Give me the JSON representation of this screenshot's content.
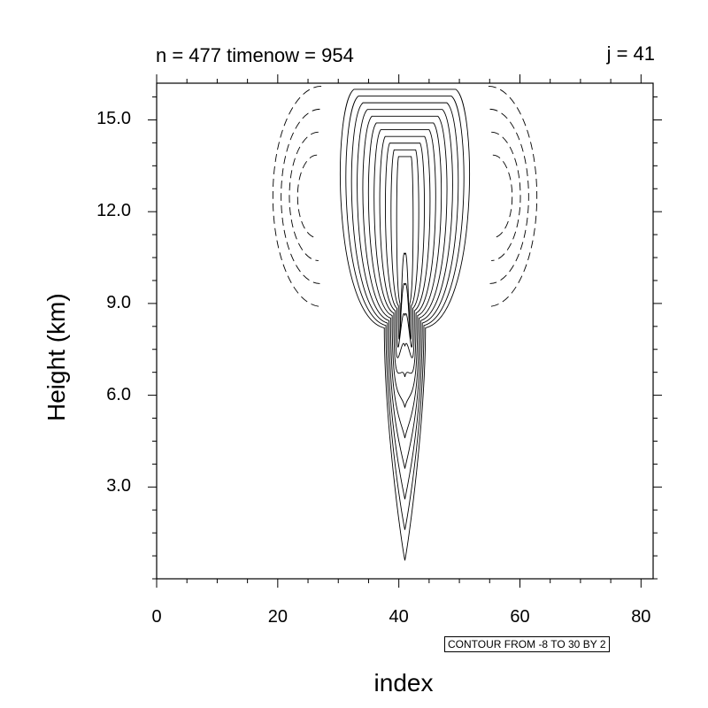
{
  "chart_data": {
    "type": "contour",
    "title_left": "n = 477 timenow = 954",
    "title_right": "j = 41",
    "xlabel": "index",
    "ylabel": "Height (km)",
    "xlim": [
      0,
      82
    ],
    "ylim": [
      0,
      16.2
    ],
    "x_ticks": [
      "0",
      "20",
      "40",
      "60",
      "80"
    ],
    "y_ticks": [
      "3.0",
      "6.0",
      "9.0",
      "12.0",
      "15.0"
    ],
    "contour_info": "CONTOUR FROM -8 TO 30 BY 2",
    "contour_min": -8,
    "contour_max": 30,
    "contour_interval": 2,
    "negative_contours": "dashed",
    "positive_contours": "solid",
    "features": {
      "updraft_center_index": 41,
      "updraft_base_km": 0.6,
      "updraft_top_km": 16.0,
      "anvil_index_range": [
        30,
        52
      ],
      "anvil_base_km": 8.0,
      "downdraft_left_center": {
        "index": 26,
        "height_km": 12.5
      },
      "downdraft_right_center": {
        "index": 56,
        "height_km": 12.5
      }
    }
  }
}
